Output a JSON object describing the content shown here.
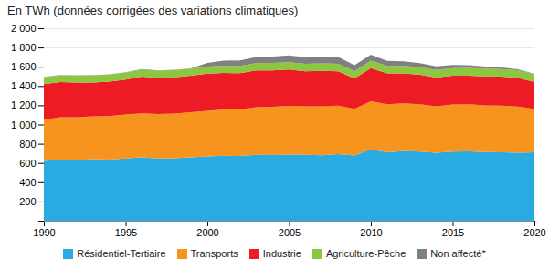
{
  "chart_data": {
    "type": "area",
    "title": "En TWh (données corrigées des variations climatiques)",
    "stacked": true,
    "x": [
      1990,
      1991,
      1992,
      1993,
      1994,
      1995,
      1996,
      1997,
      1998,
      1999,
      2000,
      2001,
      2002,
      2003,
      2004,
      2005,
      2006,
      2007,
      2008,
      2009,
      2010,
      2011,
      2012,
      2013,
      2014,
      2015,
      2016,
      2017,
      2018,
      2019,
      2020
    ],
    "series": [
      {
        "name": "Résidentiel-Tertiaire",
        "color": "#29ABE2",
        "values": [
          620,
          635,
          630,
          640,
          635,
          648,
          658,
          648,
          650,
          658,
          668,
          675,
          672,
          685,
          682,
          688,
          685,
          680,
          692,
          678,
          742,
          710,
          725,
          718,
          705,
          718,
          720,
          714,
          712,
          706,
          710
        ]
      },
      {
        "name": "Transports",
        "color": "#F7941D",
        "values": [
          430,
          440,
          445,
          445,
          452,
          456,
          458,
          460,
          463,
          470,
          475,
          482,
          486,
          494,
          502,
          506,
          504,
          510,
          505,
          485,
          500,
          500,
          495,
          493,
          485,
          490,
          490,
          485,
          485,
          482,
          452
        ]
      },
      {
        "name": "Industrie",
        "color": "#ED1C24",
        "values": [
          370,
          365,
          362,
          350,
          358,
          362,
          382,
          376,
          378,
          378,
          385,
          378,
          374,
          382,
          378,
          376,
          364,
          368,
          356,
          316,
          344,
          320,
          310,
          305,
          298,
          300,
          298,
          302,
          300,
          296,
          282
        ]
      },
      {
        "name": "Agriculture-Pêche",
        "color": "#8DC63F",
        "values": [
          72,
          72,
          73,
          73,
          73,
          74,
          74,
          74,
          75,
          75,
          75,
          76,
          76,
          76,
          77,
          77,
          77,
          77,
          78,
          76,
          78,
          78,
          78,
          78,
          78,
          78,
          79,
          79,
          79,
          79,
          78
        ]
      },
      {
        "name": "Non affecté*",
        "color": "#808080",
        "values": [
          3,
          3,
          3,
          3,
          3,
          3,
          3,
          3,
          3,
          3,
          38,
          52,
          58,
          65,
          68,
          70,
          70,
          72,
          70,
          62,
          62,
          52,
          48,
          43,
          38,
          32,
          28,
          22,
          16,
          10,
          3
        ]
      }
    ],
    "xlim": [
      1990,
      2020
    ],
    "xticks": [
      1990,
      1995,
      2000,
      2005,
      2010,
      2015,
      2020
    ],
    "ylim": [
      0,
      2000
    ],
    "yticks": [
      {
        "value": 0,
        "label": ""
      },
      200,
      400,
      600,
      800,
      {
        "value": 1000,
        "label": "1 000"
      },
      {
        "value": 1200,
        "label": "1 200"
      },
      {
        "value": 1400,
        "label": "1 400"
      },
      {
        "value": 1600,
        "label": "1 600"
      },
      {
        "value": 1800,
        "label": "1 800"
      },
      {
        "value": 2000,
        "label": "2 000"
      }
    ],
    "grid": true,
    "legend": "bottom"
  }
}
